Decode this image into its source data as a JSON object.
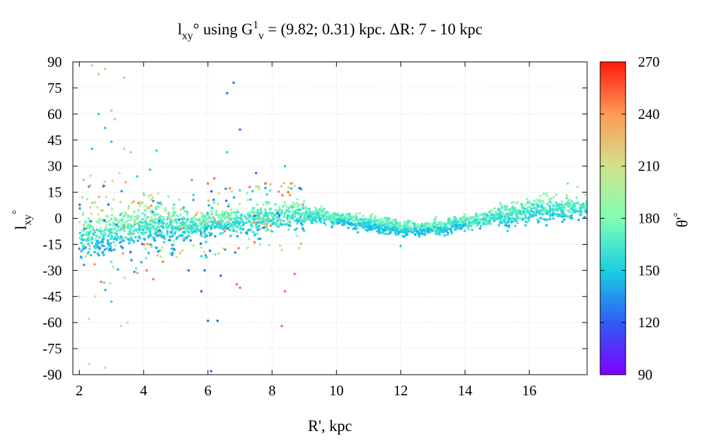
{
  "chart_data": {
    "type": "scatter",
    "title": {
      "main_prefix": "l",
      "main_sub": "xy",
      "main_mid": "° using G",
      "main_sup": "1",
      "main_sub2": "v",
      "main_rest": " = (9.82; 0.31) kpc. ΔR: 7 - 10 kpc"
    },
    "xlabel": "R', kpc",
    "ylabel": {
      "base": "l",
      "sub": "xy",
      "sup": "°"
    },
    "colorbar_label": {
      "base": "θ'",
      "sup": "°"
    },
    "xlim": [
      1.8,
      17.8
    ],
    "ylim": [
      -90,
      90
    ],
    "x_ticks": [
      2,
      4,
      6,
      8,
      10,
      12,
      14,
      16
    ],
    "y_ticks": [
      -90,
      -75,
      -60,
      -45,
      -30,
      -15,
      0,
      15,
      30,
      45,
      60,
      75,
      90
    ],
    "colorbar": {
      "min": 90,
      "max": 270,
      "ticks": [
        90,
        120,
        150,
        180,
        210,
        240,
        270
      ]
    },
    "grid": true,
    "band": {
      "description": "dense ridge of points with sinusoidal mean",
      "x_range": [
        2.0,
        17.8
      ],
      "mean_points": [
        [
          2,
          -10
        ],
        [
          3,
          -8
        ],
        [
          4,
          -5
        ],
        [
          5,
          -4
        ],
        [
          6,
          -3
        ],
        [
          7,
          -1
        ],
        [
          8,
          1
        ],
        [
          9,
          2
        ],
        [
          10,
          0
        ],
        [
          11,
          -3
        ],
        [
          12,
          -6
        ],
        [
          13,
          -6
        ],
        [
          14,
          -3
        ],
        [
          15,
          1
        ],
        [
          16,
          4
        ],
        [
          17,
          6
        ]
      ],
      "theta_range": [
        140,
        200
      ]
    },
    "outliers": [
      {
        "x": 2.4,
        "y": 88,
        "theta": 222
      },
      {
        "x": 2.6,
        "y": 83,
        "theta": 222
      },
      {
        "x": 2.8,
        "y": 86,
        "theta": 222
      },
      {
        "x": 3.4,
        "y": 81,
        "theta": 222
      },
      {
        "x": 3.0,
        "y": 62,
        "theta": 228
      },
      {
        "x": 3.1,
        "y": 57,
        "theta": 225
      },
      {
        "x": 2.6,
        "y": 60,
        "theta": 150
      },
      {
        "x": 2.8,
        "y": 52,
        "theta": 150
      },
      {
        "x": 3.0,
        "y": 44,
        "theta": 150
      },
      {
        "x": 3.4,
        "y": 40,
        "theta": 222
      },
      {
        "x": 3.6,
        "y": 38,
        "theta": 225
      },
      {
        "x": 2.4,
        "y": 40,
        "theta": 150
      },
      {
        "x": 6.8,
        "y": 78,
        "theta": 125
      },
      {
        "x": 6.6,
        "y": 72,
        "theta": 125
      },
      {
        "x": 7.0,
        "y": 51,
        "theta": 125
      },
      {
        "x": 6.6,
        "y": 38,
        "theta": 155
      },
      {
        "x": 7.5,
        "y": 26,
        "theta": 125
      },
      {
        "x": 8.4,
        "y": 30,
        "theta": 150
      },
      {
        "x": 4.4,
        "y": 39,
        "theta": 155
      },
      {
        "x": 4.2,
        "y": 28,
        "theta": 155
      },
      {
        "x": 3.8,
        "y": 24,
        "theta": 155
      },
      {
        "x": 6.0,
        "y": -59,
        "theta": 125
      },
      {
        "x": 6.3,
        "y": -59,
        "theta": 125
      },
      {
        "x": 6.1,
        "y": -88,
        "theta": 125
      },
      {
        "x": 5.8,
        "y": -42,
        "theta": 125
      },
      {
        "x": 8.3,
        "y": -62,
        "theta": 250
      },
      {
        "x": 8.4,
        "y": -42,
        "theta": 250
      },
      {
        "x": 6.9,
        "y": -38,
        "theta": 250
      },
      {
        "x": 7.0,
        "y": -40,
        "theta": 250
      },
      {
        "x": 8.7,
        "y": -32,
        "theta": 250
      },
      {
        "x": 4.3,
        "y": -35,
        "theta": 250
      },
      {
        "x": 4.1,
        "y": -30,
        "theta": 250
      },
      {
        "x": 4.6,
        "y": -25,
        "theta": 250
      },
      {
        "x": 2.3,
        "y": -84,
        "theta": 210
      },
      {
        "x": 2.8,
        "y": -86,
        "theta": 205
      },
      {
        "x": 2.3,
        "y": -58,
        "theta": 210
      },
      {
        "x": 2.5,
        "y": -45,
        "theta": 210
      },
      {
        "x": 3.0,
        "y": -48,
        "theta": 155
      },
      {
        "x": 3.3,
        "y": -62,
        "theta": 195
      },
      {
        "x": 3.5,
        "y": -60,
        "theta": 195
      },
      {
        "x": 2.0,
        "y": -45,
        "theta": 205
      },
      {
        "x": 2.2,
        "y": -22,
        "theta": 200
      },
      {
        "x": 5.5,
        "y": 22,
        "theta": 245
      },
      {
        "x": 6.0,
        "y": 20,
        "theta": 250
      },
      {
        "x": 6.2,
        "y": 23,
        "theta": 250
      },
      {
        "x": 7.3,
        "y": 18,
        "theta": 250
      },
      {
        "x": 7.8,
        "y": 20,
        "theta": 250
      },
      {
        "x": 8.5,
        "y": 15,
        "theta": 250
      },
      {
        "x": 5.4,
        "y": -30,
        "theta": 125
      },
      {
        "x": 5.9,
        "y": -30,
        "theta": 125
      },
      {
        "x": 6.4,
        "y": -33,
        "theta": 125
      },
      {
        "x": 17.2,
        "y": 20,
        "theta": 170
      },
      {
        "x": 17.5,
        "y": 18,
        "theta": 190
      },
      {
        "x": 17.8,
        "y": -17,
        "theta": 200
      },
      {
        "x": 12.0,
        "y": -16,
        "theta": 150
      }
    ]
  }
}
